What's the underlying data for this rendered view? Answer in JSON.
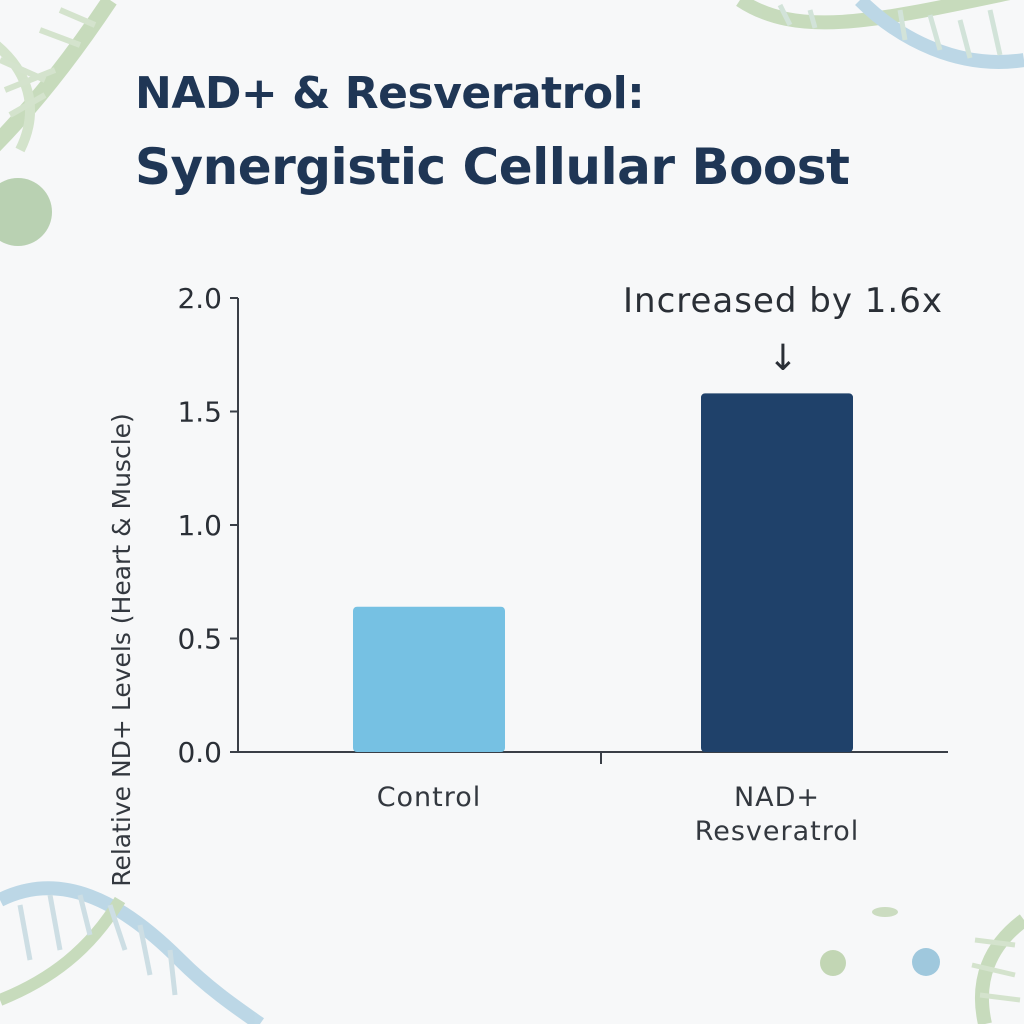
{
  "title": {
    "line1": "NAD+ & Resveratrol:",
    "line2": "Synergistic Cellular Boost"
  },
  "colors": {
    "title": "#1f3655",
    "axis": "#3a3f47",
    "control_bar": "#76c1e3",
    "treatment_bar": "#1f416a",
    "background": "#f7f8f9",
    "helix_green": "#b7d2a8",
    "helix_blue": "#a9cde0"
  },
  "chart_data": {
    "type": "bar",
    "categories": [
      [
        "Control"
      ],
      [
        "NAD+",
        "Resveratrol"
      ]
    ],
    "values": [
      0.64,
      1.58
    ],
    "bar_colors": [
      "#76c1e3",
      "#1f416a"
    ],
    "title": "",
    "xlabel": "",
    "ylabel": "Relative ND+ Levels (Heart & Muscle)",
    "ylim": [
      0,
      2.0
    ],
    "yticks": [
      0.0,
      0.5,
      1.0,
      1.5,
      2.0
    ],
    "ytick_labels": [
      "0.0",
      "0.5",
      "1.0",
      "1.5",
      "2.0"
    ],
    "grid": false,
    "annotation": {
      "text": "Increased by 1.6x",
      "arrow": "↓",
      "target_category_index": 1
    }
  }
}
